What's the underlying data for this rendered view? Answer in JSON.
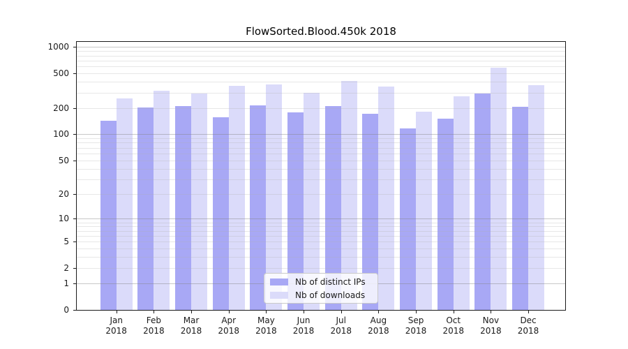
{
  "chart_data": {
    "type": "bar",
    "title": "FlowSorted.Blood.450k 2018",
    "categories": [
      "Jan 2018",
      "Feb 2018",
      "Mar 2018",
      "Apr 2018",
      "May 2018",
      "Jun 2018",
      "Jul 2018",
      "Aug 2018",
      "Sep 2018",
      "Oct 2018",
      "Nov 2018",
      "Dec 2018"
    ],
    "months": [
      {
        "month": "Jan",
        "year": "2018"
      },
      {
        "month": "Feb",
        "year": "2018"
      },
      {
        "month": "Mar",
        "year": "2018"
      },
      {
        "month": "Apr",
        "year": "2018"
      },
      {
        "month": "May",
        "year": "2018"
      },
      {
        "month": "Jun",
        "year": "2018"
      },
      {
        "month": "Jul",
        "year": "2018"
      },
      {
        "month": "Aug",
        "year": "2018"
      },
      {
        "month": "Sep",
        "year": "2018"
      },
      {
        "month": "Oct",
        "year": "2018"
      },
      {
        "month": "Nov",
        "year": "2018"
      },
      {
        "month": "Dec",
        "year": "2018"
      }
    ],
    "series": [
      {
        "name": "Nb of distinct IPs",
        "color": "#a8a8f5",
        "values": [
          144,
          205,
          211,
          158,
          216,
          179,
          211,
          173,
          116,
          152,
          297,
          207
        ]
      },
      {
        "name": "Nb of downloads",
        "color": "#dbdbfa",
        "values": [
          259,
          318,
          294,
          359,
          375,
          301,
          407,
          352,
          181,
          272,
          580,
          369
        ]
      }
    ],
    "yscale": "log1p",
    "yticks": [
      0,
      1,
      2,
      5,
      10,
      20,
      50,
      100,
      200,
      500,
      1000
    ],
    "ylim": [
      0,
      1180
    ],
    "xlabel": "",
    "ylabel": "",
    "grid": "horizontal",
    "legend_position": "lower-center",
    "background": "#ffffff",
    "colors": {
      "grid_major": "rgba(130,130,130,0.45)",
      "grid_minor": "rgba(175,175,175,0.30)",
      "spine": "#1a1a1a",
      "text": "#1a1a1a"
    }
  }
}
